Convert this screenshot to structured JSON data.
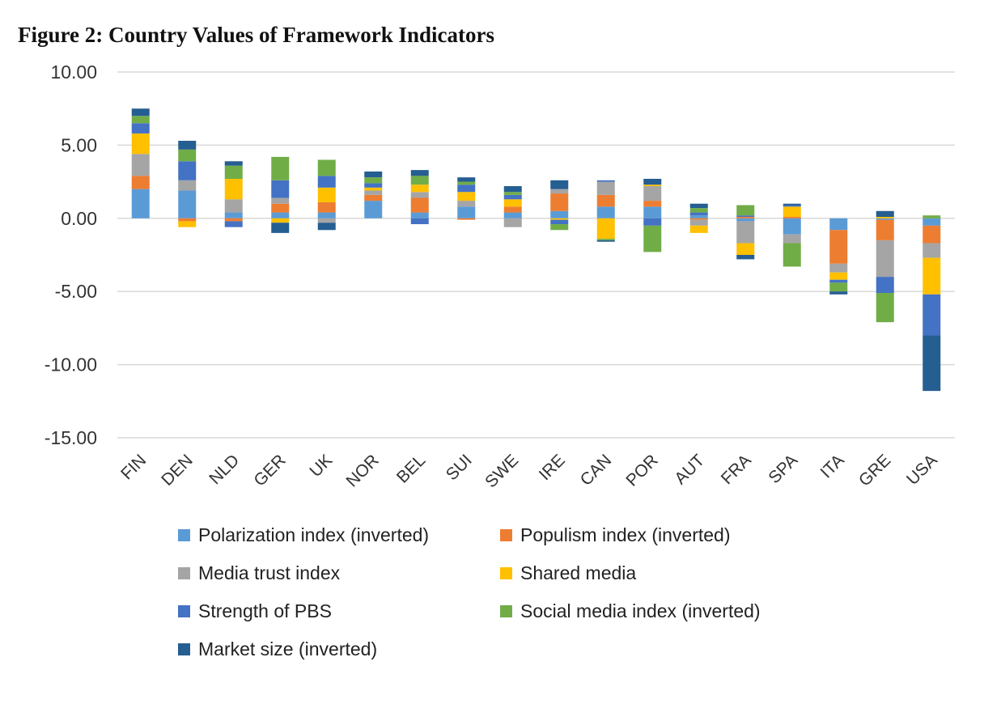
{
  "figure": {
    "title": "Figure 2: Country Values of Framework Indicators"
  },
  "chart_data": {
    "type": "bar",
    "stacked": true,
    "title": "Figure 2: Country Values of Framework Indicators",
    "xlabel": "",
    "ylabel": "",
    "ylim": [
      -15,
      10
    ],
    "yticks": [
      10,
      5,
      0,
      -5,
      -10,
      -15
    ],
    "ytick_labels": [
      "10.00",
      "5.00",
      "0.00",
      "-5.00",
      "-10.00",
      "-15.00"
    ],
    "grid": true,
    "legend_position": "bottom",
    "categories": [
      "FIN",
      "DEN",
      "NLD",
      "GER",
      "UK",
      "NOR",
      "BEL",
      "SUI",
      "SWE",
      "IRE",
      "CAN",
      "POR",
      "AUT",
      "FRA",
      "SPA",
      "ITA",
      "GRE",
      "USA"
    ],
    "series": [
      {
        "name": "Polarization index (inverted)",
        "color": "#5b9bd5",
        "values": [
          2.0,
          1.9,
          0.4,
          0.4,
          0.4,
          1.2,
          0.4,
          0.8,
          0.4,
          0.5,
          0.8,
          0.8,
          0.2,
          -0.2,
          -1.1,
          -0.8,
          -0.1,
          -0.5
        ]
      },
      {
        "name": "Populism index (inverted)",
        "color": "#ed7d31",
        "values": [
          0.9,
          -0.2,
          -0.2,
          0.6,
          0.7,
          0.4,
          1.0,
          -0.1,
          0.4,
          1.2,
          0.8,
          0.4,
          -0.1,
          0.1,
          0.1,
          -2.3,
          -1.4,
          -1.2
        ]
      },
      {
        "name": "Media trust index",
        "color": "#a5a5a5",
        "values": [
          1.5,
          0.7,
          0.9,
          0.4,
          -0.3,
          0.3,
          0.4,
          0.4,
          -0.6,
          0.3,
          0.9,
          1.0,
          -0.4,
          -1.5,
          -0.6,
          -0.6,
          -2.5,
          -1.0
        ]
      },
      {
        "name": "Shared media",
        "color": "#ffc000",
        "values": [
          1.4,
          -0.4,
          1.4,
          -0.3,
          1.0,
          0.2,
          0.5,
          0.6,
          0.5,
          -0.1,
          -1.4,
          0.1,
          -0.5,
          -0.8,
          0.7,
          -0.5,
          0.1,
          -2.5
        ]
      },
      {
        "name": "Strength of PBS",
        "color": "#4472c4",
        "values": [
          0.7,
          1.3,
          -0.4,
          1.2,
          0.8,
          0.3,
          -0.4,
          0.5,
          0.3,
          -0.3,
          0.1,
          -0.5,
          0.2,
          0.1,
          0.1,
          -0.2,
          -1.1,
          -2.8
        ]
      },
      {
        "name": "Social media index (inverted)",
        "color": "#70ad47",
        "values": [
          0.5,
          0.8,
          0.9,
          1.6,
          1.1,
          0.4,
          0.6,
          0.2,
          0.2,
          -0.4,
          -0.1,
          -1.8,
          0.3,
          0.7,
          -1.6,
          -0.6,
          -2.0,
          0.2
        ]
      },
      {
        "name": "Market size (inverted)",
        "color": "#255e91",
        "values": [
          0.5,
          0.6,
          0.3,
          -0.7,
          -0.5,
          0.4,
          0.4,
          0.3,
          0.4,
          0.6,
          -0.1,
          0.4,
          0.3,
          -0.3,
          0.1,
          -0.2,
          0.4,
          -3.8
        ]
      }
    ]
  }
}
